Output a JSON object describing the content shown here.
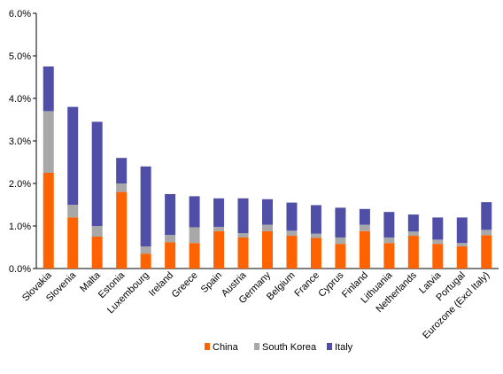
{
  "chart_data": {
    "type": "bar",
    "stacked": true,
    "title": "",
    "xlabel": "",
    "ylabel": "",
    "ylim": [
      0,
      6
    ],
    "y_tick_values": [
      0,
      1,
      2,
      3,
      4,
      5,
      6
    ],
    "y_tick_labels": [
      "0.0%",
      "1.0%",
      "2.0%",
      "3.0%",
      "4.0%",
      "5.0%",
      "6.0%"
    ],
    "grid": false,
    "legend_position": "bottom",
    "categories": [
      "Slovakia",
      "Slovenia",
      "Malta",
      "Estonia",
      "Luxembourg",
      "Ireland",
      "Greece",
      "Spain",
      "Austria",
      "Germany",
      "Belgium",
      "France",
      "Cyprus",
      "Finland",
      "Lithuania",
      "Netherlands",
      "Latvia",
      "Portugal",
      "Eurozone (Excl Italy)"
    ],
    "series": [
      {
        "name": "China",
        "color": "#ff6200",
        "values": [
          2.25,
          1.2,
          0.75,
          1.8,
          0.35,
          0.62,
          0.6,
          0.88,
          0.73,
          0.88,
          0.77,
          0.72,
          0.58,
          0.88,
          0.6,
          0.77,
          0.58,
          0.52,
          0.78
        ]
      },
      {
        "name": "South Korea",
        "color": "#a8a8a8",
        "values": [
          1.45,
          0.3,
          0.25,
          0.2,
          0.17,
          0.17,
          0.37,
          0.1,
          0.1,
          0.15,
          0.12,
          0.1,
          0.15,
          0.15,
          0.13,
          0.1,
          0.1,
          0.08,
          0.13
        ]
      },
      {
        "name": "Italy",
        "color": "#4f4fa8",
        "values": [
          1.05,
          2.3,
          2.45,
          0.6,
          1.88,
          0.96,
          0.73,
          0.67,
          0.82,
          0.6,
          0.66,
          0.67,
          0.7,
          0.37,
          0.6,
          0.4,
          0.52,
          0.6,
          0.65
        ]
      }
    ]
  }
}
